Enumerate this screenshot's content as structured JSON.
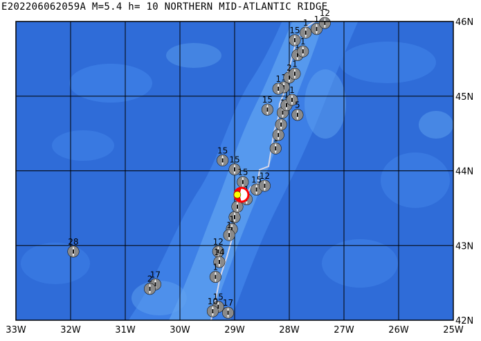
{
  "title": "E202206062059A M=5.4 h= 10 NORTHERN MID-ATLANTIC RIDGE",
  "map": {
    "lon_range": [
      -33,
      -25
    ],
    "lat_range": [
      42,
      46
    ],
    "x_ticks": [
      {
        "lon": -33,
        "label": "33W"
      },
      {
        "lon": -32,
        "label": "32W"
      },
      {
        "lon": -31,
        "label": "31W"
      },
      {
        "lon": -30,
        "label": "30W"
      },
      {
        "lon": -29,
        "label": "29W"
      },
      {
        "lon": -28,
        "label": "28W"
      },
      {
        "lon": -27,
        "label": "27W"
      },
      {
        "lon": -26,
        "label": "26W"
      },
      {
        "lon": -25,
        "label": "25W"
      }
    ],
    "y_ticks": [
      {
        "lat": 46,
        "label": "46N"
      },
      {
        "lat": 45,
        "label": "45N"
      },
      {
        "lat": 44,
        "label": "44N"
      },
      {
        "lat": 43,
        "label": "43N"
      },
      {
        "lat": 42,
        "label": "42N"
      }
    ],
    "colors": {
      "ocean_deep": "#2f6cd8",
      "ocean_mid": "#3d7fe6",
      "ridge_shallow": "#5fa2f0",
      "grid": "#000000",
      "plate_boundary": "#d8d8e8",
      "main_event_ring": "#ff0000",
      "epicenter_star": "#ffff00"
    },
    "main_event": {
      "lon": -28.95,
      "lat": 43.68
    },
    "mechanisms": [
      {
        "lon": -31.95,
        "lat": 42.92,
        "depth": "28"
      },
      {
        "lon": -30.45,
        "lat": 42.48,
        "depth": "17"
      },
      {
        "lon": -30.55,
        "lat": 42.42,
        "depth": "2"
      },
      {
        "lon": -29.3,
        "lat": 42.92,
        "depth": "12"
      },
      {
        "lon": -29.28,
        "lat": 42.78,
        "depth": "14"
      },
      {
        "lon": -29.35,
        "lat": 42.58,
        "depth": "1"
      },
      {
        "lon": -29.3,
        "lat": 42.18,
        "depth": "15"
      },
      {
        "lon": -29.4,
        "lat": 42.12,
        "depth": "10"
      },
      {
        "lon": -29.12,
        "lat": 42.1,
        "depth": "17"
      },
      {
        "lon": -29.0,
        "lat": 43.38,
        "depth": "1"
      },
      {
        "lon": -29.05,
        "lat": 43.22,
        "depth": "1"
      },
      {
        "lon": -29.1,
        "lat": 43.14,
        "depth": "1"
      },
      {
        "lon": -28.95,
        "lat": 43.52,
        "depth": "1"
      },
      {
        "lon": -29.22,
        "lat": 44.14,
        "depth": "15"
      },
      {
        "lon": -29.0,
        "lat": 44.02,
        "depth": "15"
      },
      {
        "lon": -28.85,
        "lat": 43.85,
        "depth": "15"
      },
      {
        "lon": -28.6,
        "lat": 43.75,
        "depth": "15"
      },
      {
        "lon": -28.45,
        "lat": 43.8,
        "depth": "12"
      },
      {
        "lon": -28.78,
        "lat": 43.62,
        "depth": "1"
      },
      {
        "lon": -28.25,
        "lat": 44.3,
        "depth": "1"
      },
      {
        "lon": -28.2,
        "lat": 44.48,
        "depth": "1"
      },
      {
        "lon": -28.15,
        "lat": 44.62,
        "depth": "1"
      },
      {
        "lon": -28.12,
        "lat": 44.78,
        "depth": "1"
      },
      {
        "lon": -28.4,
        "lat": 44.82,
        "depth": "15"
      },
      {
        "lon": -28.05,
        "lat": 44.88,
        "depth": "1"
      },
      {
        "lon": -27.95,
        "lat": 44.95,
        "depth": "1"
      },
      {
        "lon": -27.85,
        "lat": 44.75,
        "depth": "5"
      },
      {
        "lon": -28.1,
        "lat": 45.12,
        "depth": "1"
      },
      {
        "lon": -28.2,
        "lat": 45.1,
        "depth": "1"
      },
      {
        "lon": -28.0,
        "lat": 45.25,
        "depth": "2"
      },
      {
        "lon": -27.9,
        "lat": 45.3,
        "depth": "1"
      },
      {
        "lon": -27.85,
        "lat": 45.55,
        "depth": "1"
      },
      {
        "lon": -27.75,
        "lat": 45.6,
        "depth": "1"
      },
      {
        "lon": -27.9,
        "lat": 45.75,
        "depth": "15"
      },
      {
        "lon": -27.7,
        "lat": 45.85,
        "depth": "1"
      },
      {
        "lon": -27.5,
        "lat": 45.9,
        "depth": "1"
      },
      {
        "lon": -27.35,
        "lat": 45.98,
        "depth": "12"
      }
    ]
  }
}
